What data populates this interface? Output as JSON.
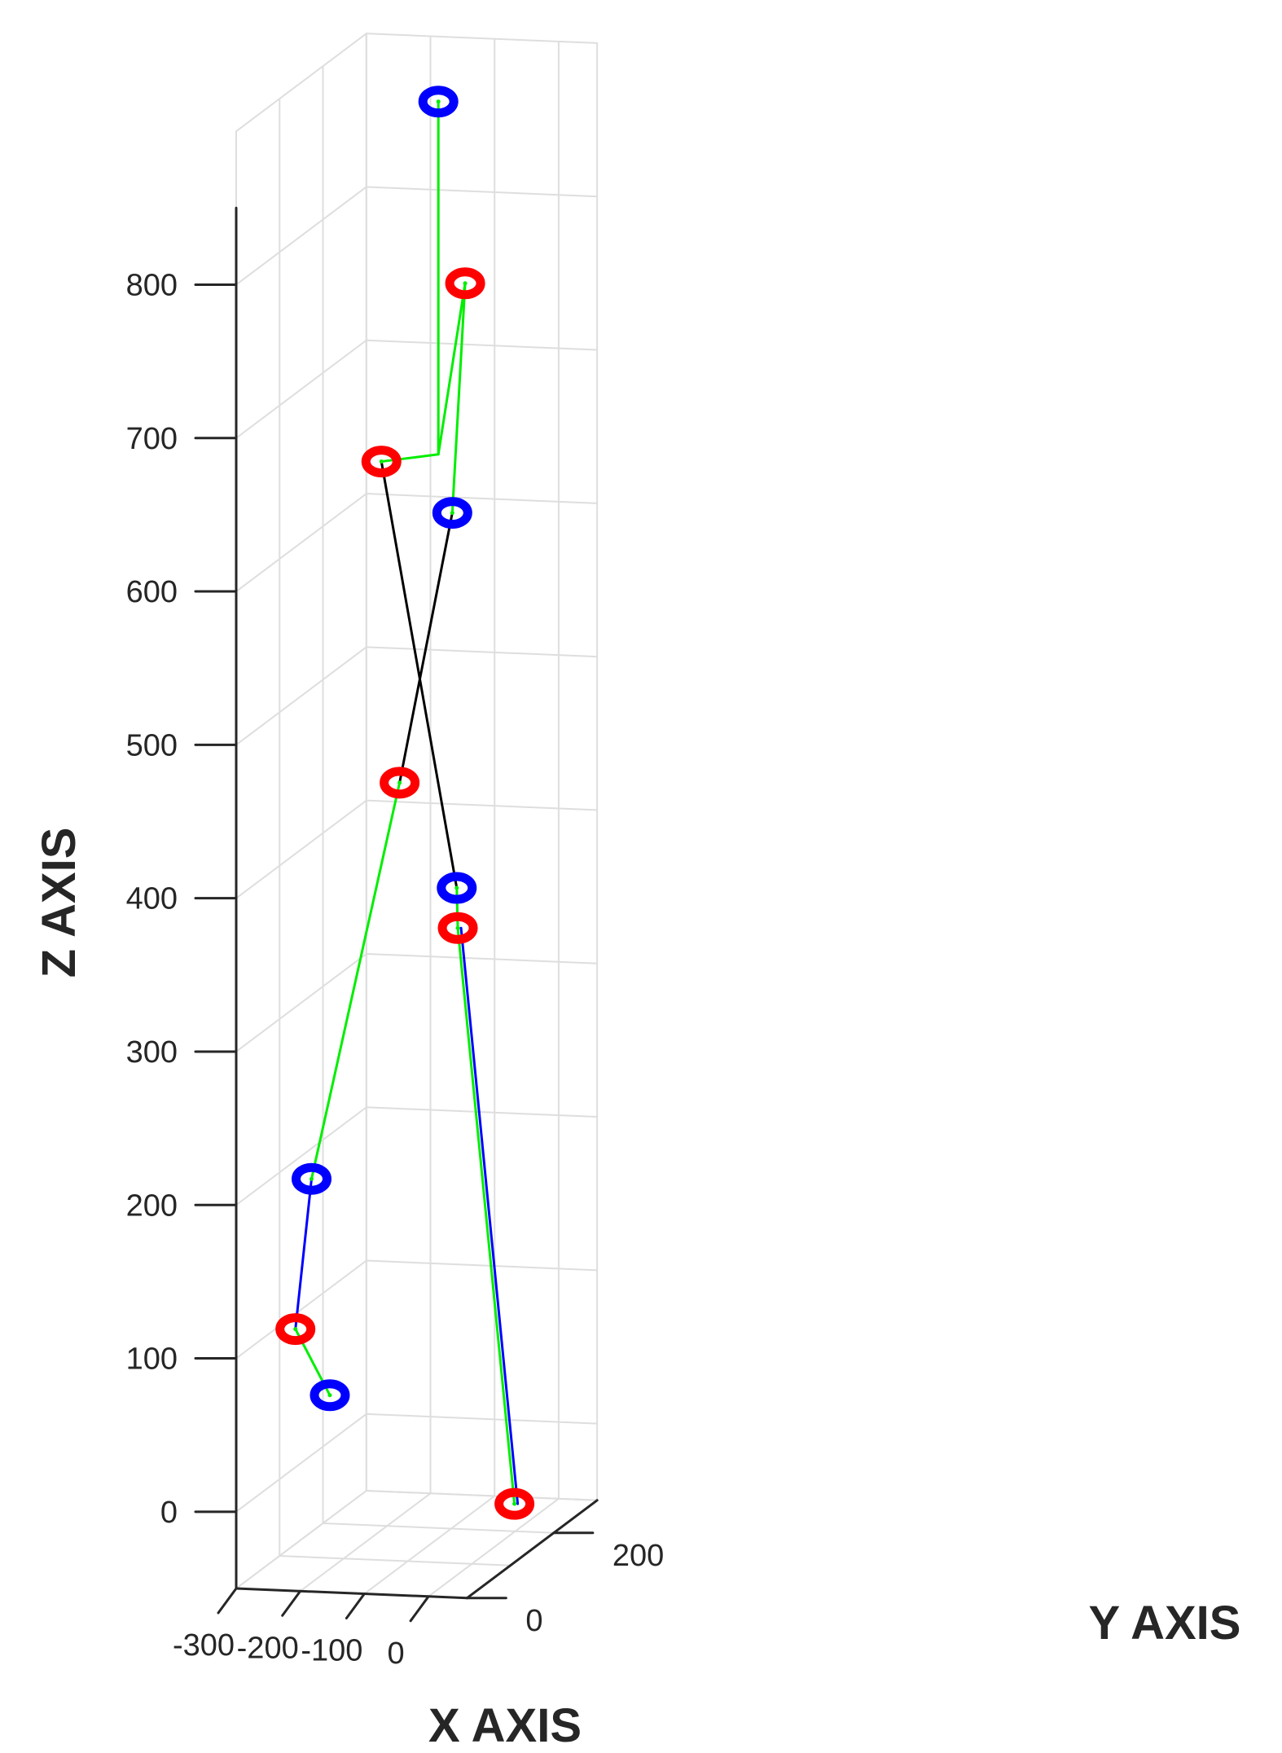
{
  "chart_data": {
    "type": "scatter",
    "chart_kind": "3d-skeleton-scatter",
    "xlabel": "X AXIS",
    "ylabel": "Y AXIS",
    "zlabel": "Z AXIS",
    "x_ticks": [
      "-300",
      "-200",
      "-100",
      "0"
    ],
    "y_ticks": [
      "0",
      "200"
    ],
    "z_ticks": [
      "0",
      "100",
      "200",
      "300",
      "400",
      "500",
      "600",
      "700",
      "800"
    ],
    "xlim": [
      -300,
      0
    ],
    "ylim": [
      0,
      300
    ],
    "zlim": [
      -50,
      900
    ],
    "grid": true,
    "legend": "none",
    "colors": {
      "joint_red": "#ff0000",
      "joint_blue": "#0000ff",
      "bone_green": "#00ee00",
      "bone_black": "#000000",
      "bone_blue": "#0000ff",
      "grid": "#dedede",
      "axis": "#262626"
    },
    "series": [
      {
        "marker": "red-ring",
        "points": [
          {
            "id": "r1",
            "x": -85,
            "y": 210,
            "z": 760
          },
          {
            "id": "r2",
            "x": -175,
            "y": 150,
            "z": 655
          },
          {
            "id": "r3",
            "x": -150,
            "y": 155,
            "z": 445
          },
          {
            "id": "r4",
            "x": -110,
            "y": 230,
            "z": 335
          },
          {
            "id": "r5",
            "x": -255,
            "y": 70,
            "z": 105
          },
          {
            "id": "r6",
            "x": -25,
            "y": 235,
            "z": -40
          }
        ]
      },
      {
        "marker": "blue-ring",
        "points": [
          {
            "id": "b1",
            "x": -120,
            "y": 200,
            "z": 880
          },
          {
            "id": "b2",
            "x": -105,
            "y": 210,
            "z": 610
          },
          {
            "id": "b3",
            "x": -115,
            "y": 235,
            "z": 360
          },
          {
            "id": "b4",
            "x": -240,
            "y": 85,
            "z": 200
          },
          {
            "id": "b5",
            "x": -225,
            "y": 105,
            "z": 55
          }
        ]
      }
    ],
    "bones": [
      {
        "from": "b1",
        "to": "neck",
        "color": "green"
      },
      {
        "from": "neck",
        "to": "r1",
        "color": "green"
      },
      {
        "from": "neck",
        "to": "r2",
        "color": "green"
      },
      {
        "from": "r1",
        "to": "b2",
        "color": "green"
      },
      {
        "from": "b2",
        "to": "r3",
        "color": "black"
      },
      {
        "from": "r2",
        "to": "b3",
        "color": "black"
      },
      {
        "from": "r3",
        "to": "b4",
        "color": "green"
      },
      {
        "from": "b4",
        "to": "r5",
        "color": "blue"
      },
      {
        "from": "r5",
        "to": "b5",
        "color": "green"
      },
      {
        "from": "b3",
        "to": "r4",
        "color": "green"
      },
      {
        "from": "r4",
        "to": "r6",
        "color": "green"
      },
      {
        "from": "r4",
        "to": "r6",
        "color": "blue"
      }
    ]
  }
}
